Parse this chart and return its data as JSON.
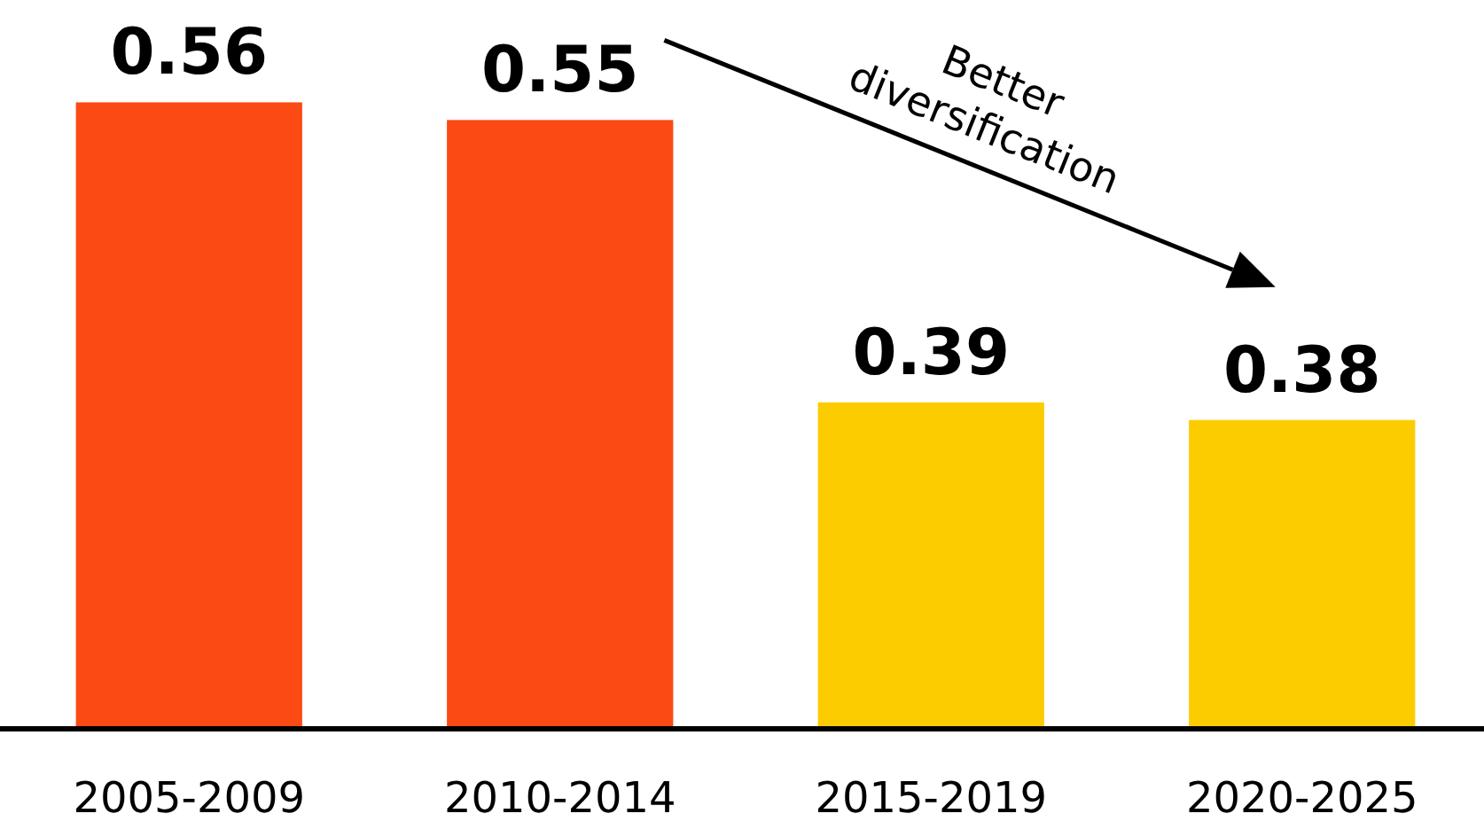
{
  "chart_data": {
    "type": "bar",
    "categories": [
      "2005-2009",
      "2010-2014",
      "2015-2019",
      "2020-2025"
    ],
    "values": [
      0.56,
      0.55,
      0.39,
      0.38
    ],
    "colors": [
      "#fc4a14",
      "#fc4a14",
      "#fdcc00",
      "#fdcc00"
    ],
    "ylim": [
      0.205,
      0.618
    ],
    "tick_labels": "x",
    "data_labels": true,
    "annotations": [
      "Better diversification"
    ]
  }
}
